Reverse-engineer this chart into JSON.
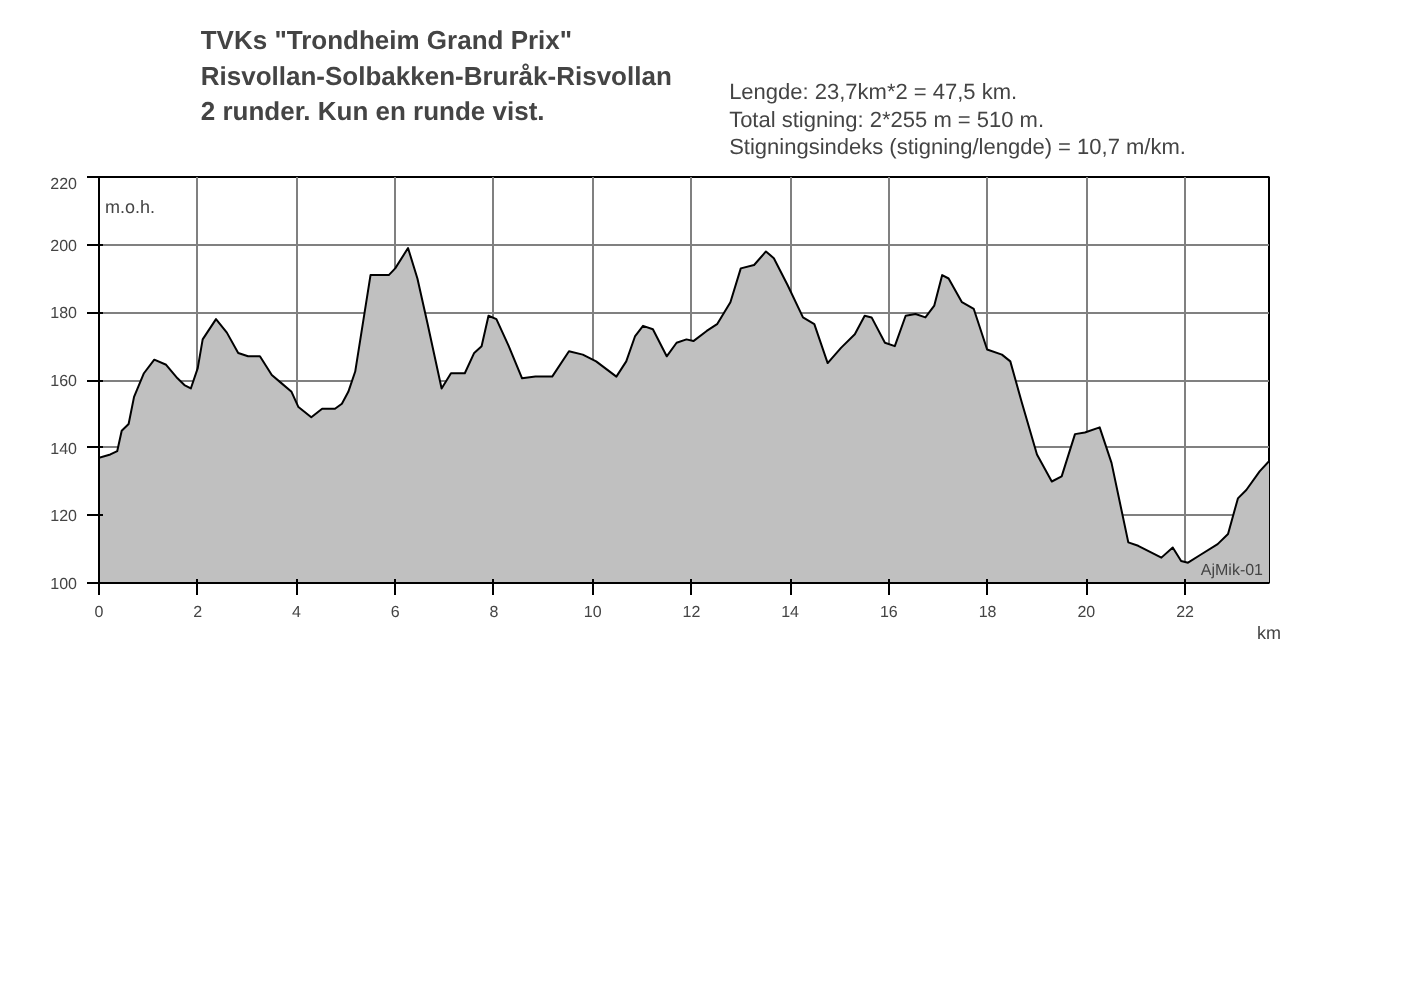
{
  "chart_data": {
    "type": "area",
    "title": "TVKs \"Trondheim Grand Prix\"",
    "subtitle": "Risvollan-Solbakken-Bruråk-Risvollan\n2 runder. Kun en runde vist.",
    "xlabel": "km",
    "ylabel": "m.o.h.",
    "annotations": [
      "Lengde: 23,7km*2 = 47,5 km.\n Total stigning: 2*255 m = 510 m.\nStigningsindeks (stigning/lengde) = 10,7 m/km.",
      "AjMik-01"
    ],
    "x": [
      0,
      0.23,
      0.37,
      0.46,
      0.6,
      0.71,
      0.91,
      1.12,
      1.36,
      1.59,
      1.73,
      1.86,
      2.0,
      2.1,
      2.37,
      2.59,
      2.82,
      3.02,
      3.26,
      3.5,
      3.7,
      3.9,
      4.04,
      4.3,
      4.52,
      4.78,
      4.92,
      5.05,
      5.19,
      5.5,
      5.87,
      6.0,
      6.26,
      6.45,
      6.65,
      6.94,
      7.13,
      7.41,
      7.6,
      7.75,
      7.89,
      8.05,
      8.3,
      8.57,
      8.84,
      9.18,
      9.52,
      9.8,
      10.07,
      10.48,
      10.68,
      10.86,
      11.02,
      11.22,
      11.5,
      11.7,
      11.9,
      12.04,
      12.31,
      12.52,
      12.79,
      13.0,
      13.27,
      13.51,
      13.67,
      13.95,
      14.26,
      14.49,
      14.76,
      15.03,
      15.31,
      15.51,
      15.65,
      15.92,
      16.12,
      16.34,
      16.54,
      16.74,
      16.92,
      17.08,
      17.21,
      17.48,
      17.72,
      17.99,
      18.29,
      18.46,
      18.69,
      19.0,
      19.3,
      19.5,
      19.77,
      19.97,
      20.27,
      20.51,
      20.85,
      21.05,
      21.52,
      21.75,
      21.92,
      22.06,
      22.33,
      22.66,
      22.87,
      23.07,
      23.24,
      23.51,
      23.7
    ],
    "series": [
      {
        "color": "#c0c0c0",
        "values": [
          137,
          138,
          139,
          145,
          147,
          155,
          162,
          166,
          164.5,
          160.5,
          158.5,
          157.5,
          163.5,
          172,
          178,
          174,
          168,
          167,
          167,
          161.5,
          159,
          156.5,
          152,
          149,
          151.5,
          151.5,
          153,
          156.5,
          162.5,
          191,
          191,
          193,
          199,
          190,
          177,
          157.5,
          162,
          162,
          168,
          170,
          179,
          178,
          170,
          160.5,
          161,
          161,
          168.5,
          167.5,
          165.5,
          161,
          165.5,
          173,
          176,
          175,
          167,
          171,
          172,
          171.5,
          174.5,
          176.5,
          183,
          193,
          194,
          198,
          196,
          188,
          178.5,
          176.5,
          165,
          169.5,
          173.5,
          179,
          178.5,
          171,
          170,
          179,
          179.5,
          178.5,
          182,
          191,
          190,
          183,
          181,
          169,
          167.5,
          165.5,
          153.5,
          138,
          130,
          131.5,
          144,
          144.5,
          146,
          135.5,
          112,
          111,
          107.5,
          110.5,
          106.5,
          106,
          108.5,
          111.5,
          114.5,
          125,
          127.5,
          133,
          136
        ]
      }
    ],
    "xlim": [
      0,
      23.7
    ],
    "ylim": [
      100,
      220
    ],
    "xticks": [
      0,
      2,
      4,
      6,
      8,
      10,
      12,
      14,
      16,
      18,
      20,
      22
    ],
    "yticks": [
      100,
      120,
      140,
      160,
      180,
      200,
      220
    ],
    "grid": true
  }
}
